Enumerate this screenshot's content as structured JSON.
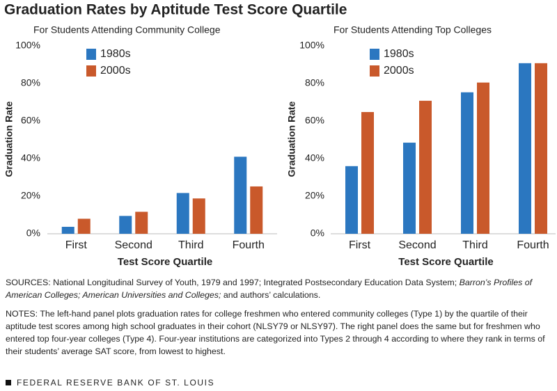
{
  "title": "Graduation Rates by Aptitude Test Score Quartile",
  "chart_data": [
    {
      "type": "bar",
      "subtitle": "For Students Attending Community College",
      "x_label": "Test Score Quartile",
      "y_label": "Graduation Rate",
      "categories": [
        "First",
        "Second",
        "Third",
        "Fourth"
      ],
      "series": [
        {
          "name": "1980s",
          "color": "#2b77c0",
          "values": [
            3.7,
            9.5,
            21.7,
            41
          ]
        },
        {
          "name": "2000s",
          "color": "#c9592b",
          "values": [
            8,
            11.7,
            18.8,
            25.2
          ]
        }
      ],
      "ylim": [
        0,
        100
      ],
      "yticks": [
        {
          "value": 0,
          "label": "0%"
        },
        {
          "value": 20,
          "label": "20%"
        },
        {
          "value": 40,
          "label": "40%"
        },
        {
          "value": 60,
          "label": "60%"
        },
        {
          "value": 80,
          "label": "80%"
        },
        {
          "value": 100,
          "label": "100%"
        }
      ],
      "grid": false,
      "legend": "top-left"
    },
    {
      "type": "bar",
      "subtitle": "For Students Attending Top Colleges",
      "x_label": "Test Score Quartile",
      "y_label": "Graduation Rate",
      "categories": [
        "First",
        "Second",
        "Third",
        "Fourth"
      ],
      "series": [
        {
          "name": "1980s",
          "color": "#2b77c0",
          "values": [
            36,
            48.5,
            75.3,
            90.8
          ]
        },
        {
          "name": "2000s",
          "color": "#c9592b",
          "values": [
            64.8,
            70.8,
            80.5,
            90.8
          ]
        }
      ],
      "ylim": [
        0,
        100
      ],
      "yticks": [
        {
          "value": 0,
          "label": "0%"
        },
        {
          "value": 20,
          "label": "20%"
        },
        {
          "value": 40,
          "label": "40%"
        },
        {
          "value": 60,
          "label": "60%"
        },
        {
          "value": 80,
          "label": "80%"
        },
        {
          "value": 100,
          "label": "100%"
        }
      ],
      "grid": false,
      "legend": "top-left"
    }
  ],
  "sources": [
    "SOURCES: National Longitudinal Survey of Youth, 1979 and 1997; Integrated Postsecondary Education Data System; ",
    "Barron’s Profiles of American Colleges; American Universities and Colleges;",
    " and authors’ calculations."
  ],
  "notes": "NOTES: The left-hand panel plots graduation rates for college freshmen who entered community colleges (Type 1) by the quartile of their aptitude test scores among high school graduates in their cohort (NLSY79 or NLSY97). The right panel does the same but for freshmen who entered top four-year colleges (Type 4). Four-year institutions are categorized into Types 2 through 4 according to where they rank in terms of their students’ average SAT score, from lowest to highest.",
  "footer": "FEDERAL RESERVE BANK OF ST. LOUIS"
}
